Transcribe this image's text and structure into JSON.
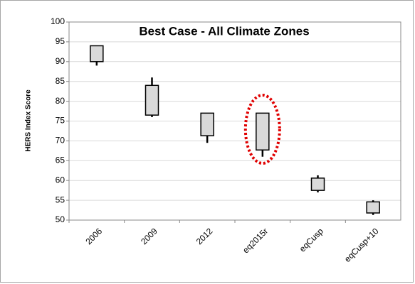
{
  "chart_data": {
    "type": "box",
    "title": "Best Case - All Climate Zones",
    "y_label": "HERS Index Score",
    "categories": [
      "2006",
      "2009",
      "2012",
      "eq2015r",
      "eqCusp",
      "eqCusp+10"
    ],
    "series": [
      {
        "color": "#d9d9d9",
        "high": [
          94,
          86,
          77,
          77,
          61.3,
          55
        ],
        "top": [
          94,
          84,
          77,
          77,
          60.6,
          54.6
        ],
        "bottom": [
          90,
          76.5,
          71.3,
          67.7,
          57.5,
          51.8
        ],
        "low": [
          89,
          76,
          69.5,
          66,
          57,
          51.3
        ]
      }
    ],
    "ylim": [
      50,
      100
    ],
    "yticks": [
      50,
      55,
      60,
      65,
      70,
      75,
      80,
      85,
      90,
      95,
      100
    ],
    "grid": true
  }
}
